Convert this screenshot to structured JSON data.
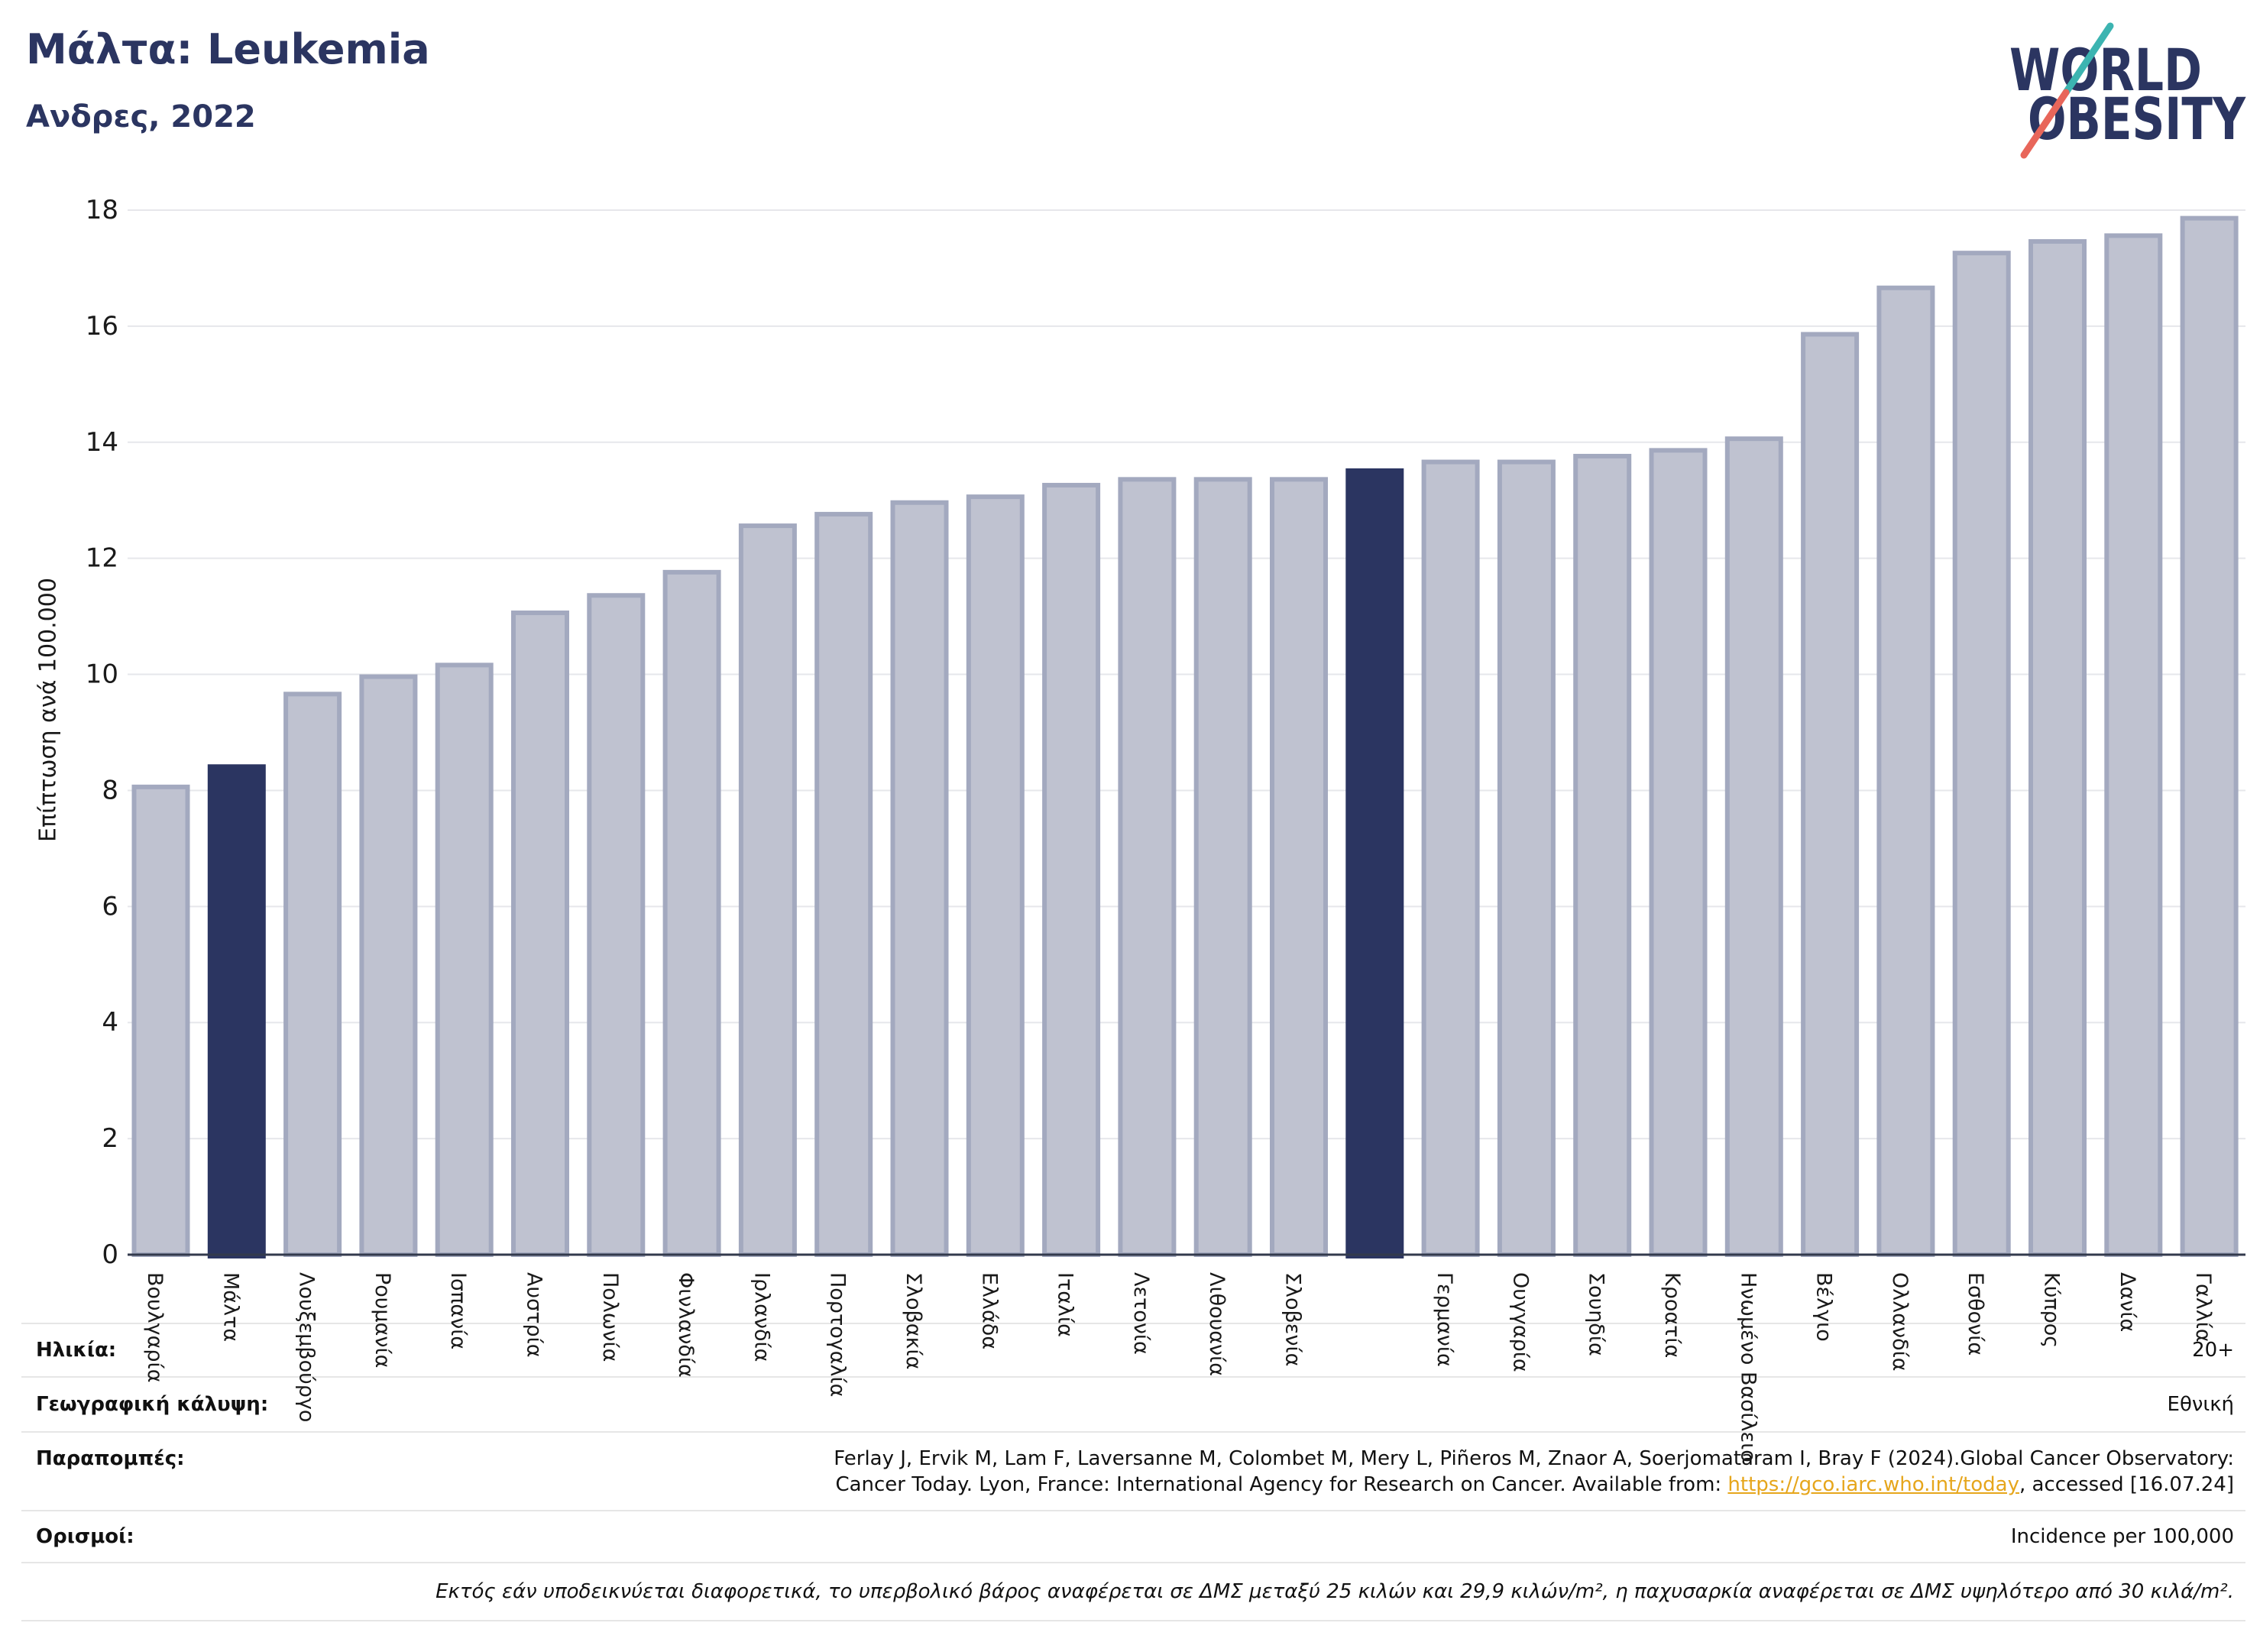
{
  "colors": {
    "navy": "#2b3561",
    "bar_light": "#bfc2d0",
    "bar_light_edge": "#a3a9bf",
    "bar_highlight": "#2b3561",
    "gridline": "#e6e7eb",
    "axis": "#333a4d",
    "link": "#e6a61c",
    "logo_teal": "#3cb4b1",
    "logo_coral": "#e8665a"
  },
  "logo": {
    "line1": "WORLD",
    "line2": "OBESITY"
  },
  "chart_data": {
    "type": "bar",
    "title": "Μάλτα: Leukemia",
    "subtitle": "Ανδρες, 2022",
    "xlabel": "",
    "ylabel": "Επίπτωση ανά 100.000",
    "ylim": [
      0,
      18
    ],
    "yticks": [
      0,
      2,
      4,
      6,
      8,
      10,
      12,
      14,
      16,
      18
    ],
    "grid": true,
    "categories": [
      "Βουλγαρία",
      "Μάλτα",
      "Λουξεμβούργο",
      "Ρουμανία",
      "Ισπανία",
      "Αυστρία",
      "Πολωνία",
      "Φινλανδία",
      "Ιρλανδία",
      "Πορτογαλία",
      "Σλοβακία",
      "Ελλάδα",
      "Ιταλία",
      "Λετονία",
      "Λιθουανία",
      "Σλοβενία",
      "",
      "Γερμανία",
      "Ουγγαρία",
      "Σουηδία",
      "Κροατία",
      "Ηνωμένο Βασίλειο",
      "Βέλγιο",
      "Ολλανδία",
      "Εσθονία",
      "Κύπρος",
      "Δανία",
      "Γαλλία"
    ],
    "values": [
      8.1,
      8.45,
      9.7,
      10.0,
      10.2,
      11.1,
      11.4,
      11.8,
      12.6,
      12.8,
      13.0,
      13.1,
      13.3,
      13.4,
      13.4,
      13.4,
      13.55,
      13.7,
      13.7,
      13.8,
      13.9,
      14.1,
      15.9,
      16.7,
      17.3,
      17.5,
      17.6,
      17.9
    ],
    "highlighted": [
      1,
      16
    ]
  },
  "info_table": {
    "age": {
      "label": "Ηλικία:",
      "value": "20+"
    },
    "coverage": {
      "label": "Γεωγραφική κάλυψη:",
      "value": "Εθνική"
    },
    "references": {
      "label": "Παραπομπές:",
      "line1": "Ferlay J, Ervik M, Lam F, Laversanne M, Colombet M, Mery L, Piñeros M, Znaor A, Soerjomataram I, Bray F (2024).Global Cancer Observatory:",
      "line2_before": "Cancer Today. Lyon, France: International Agency for Research on Cancer. Available from: ",
      "link_text": "https://gco.iarc.who.int/today",
      "line2_after": ", accessed [16.07.24]"
    },
    "definitions": {
      "label": "Ορισμοί:",
      "value": "Incidence per 100,000"
    },
    "note": "Εκτός εάν υποδεικνύεται διαφορετικά, το υπερβολικό βάρος αναφέρεται σε ΔΜΣ μεταξύ 25 κιλών και 29,9 κιλών/m², η παχυσαρκία αναφέρεται σε ΔΜΣ υψηλότερο από 30 κιλά/m²."
  }
}
